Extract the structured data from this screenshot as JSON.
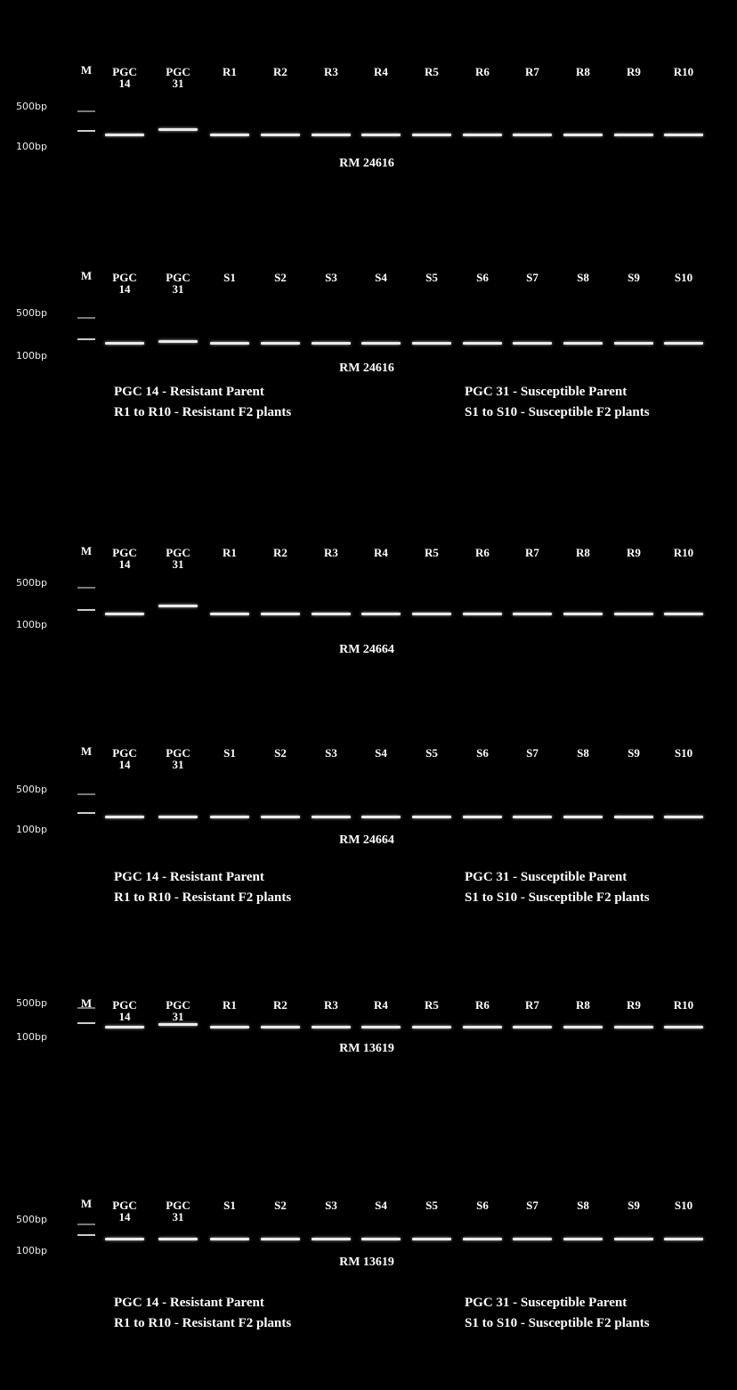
{
  "panels": [
    {
      "gels": [
        {
          "marker_lane": "M",
          "lanes": [
            "PGC 14",
            "PGC 31",
            "R1",
            "R2",
            "R3",
            "R4",
            "R5",
            "R6",
            "R7",
            "R8",
            "R9",
            "R10"
          ],
          "size_labels": [
            "500bp",
            "100bp"
          ],
          "primer": "RM 24616"
        },
        {
          "marker_lane": "M",
          "lanes": [
            "PGC 14",
            "PGC 31",
            "S1",
            "S2",
            "S3",
            "S4",
            "S5",
            "S6",
            "S7",
            "S8",
            "S9",
            "S10"
          ],
          "size_labels": [
            "500bp",
            "100bp"
          ],
          "primer": "RM 24616"
        }
      ],
      "legend": {
        "resistant_parent": "PGC 14 - Resistant Parent",
        "resistant_plants": "R1 to R10 - Resistant F2 plants",
        "susceptible_parent": "PGC 31 - Susceptible Parent",
        "susceptible_plants": "S1 to S10 - Susceptible F2 plants"
      }
    },
    {
      "gels": [
        {
          "marker_lane": "M",
          "lanes": [
            "PGC 14",
            "PGC 31",
            "R1",
            "R2",
            "R3",
            "R4",
            "R5",
            "R6",
            "R7",
            "R8",
            "R9",
            "R10"
          ],
          "size_labels": [
            "500bp",
            "100bp"
          ],
          "primer": "RM 24664"
        },
        {
          "marker_lane": "M",
          "lanes": [
            "PGC 14",
            "PGC 31",
            "S1",
            "S2",
            "S3",
            "S4",
            "S5",
            "S6",
            "S7",
            "S8",
            "S9",
            "S10"
          ],
          "size_labels": [
            "500bp",
            "100bp"
          ],
          "primer": "RM 24664"
        }
      ],
      "legend": {
        "resistant_parent": "PGC 14 - Resistant Parent",
        "resistant_plants": "R1 to R10 - Resistant F2 plants",
        "susceptible_parent": "PGC 31 - Susceptible Parent",
        "susceptible_plants": "S1 to S10 - Susceptible F2 plants"
      }
    },
    {
      "gels": [
        {
          "marker_lane": "M",
          "lanes": [
            "PGC 14",
            "PGC 31",
            "R1",
            "R2",
            "R3",
            "R4",
            "R5",
            "R6",
            "R7",
            "R8",
            "R9",
            "R10"
          ],
          "size_labels": [
            "500bp",
            "100bp"
          ],
          "primer": "RM 13619"
        },
        {
          "marker_lane": "M",
          "lanes": [
            "PGC 14",
            "PGC 31",
            "S1",
            "S2",
            "S3",
            "S4",
            "S5",
            "S6",
            "S7",
            "S8",
            "S9",
            "S10"
          ],
          "size_labels": [
            "500bp",
            "100bp"
          ],
          "primer": "RM 13619"
        }
      ],
      "legend": {
        "resistant_parent": "PGC 14 - Resistant Parent",
        "resistant_plants": "R1 to R10 - Resistant F2 plants",
        "susceptible_parent": "PGC 31 - Susceptible Parent",
        "susceptible_plants": "S1 to S10 - Susceptible F2 plants"
      }
    }
  ]
}
